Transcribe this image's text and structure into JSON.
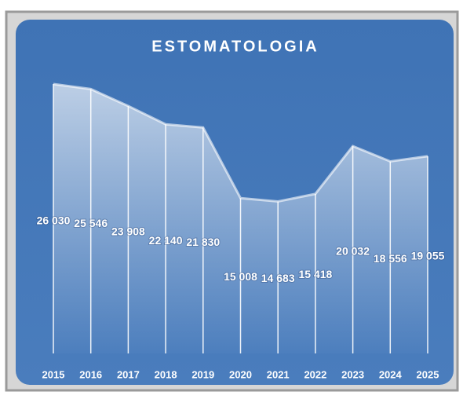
{
  "chart_data": {
    "type": "area",
    "title": "ESTOMATOLOGIA",
    "categories": [
      "2015",
      "2016",
      "2017",
      "2018",
      "2019",
      "2020",
      "2021",
      "2022",
      "2023",
      "2024",
      "2025"
    ],
    "values": [
      26030,
      25546,
      23908,
      22140,
      21830,
      15008,
      14683,
      15418,
      20032,
      18556,
      19055
    ],
    "value_labels": [
      "26 030",
      "25 546",
      "23 908",
      "22 140",
      "21 830",
      "15 008",
      "14 683",
      "15 418",
      "20 032",
      "18 556",
      "19 055"
    ],
    "color": "#ffffff"
  }
}
